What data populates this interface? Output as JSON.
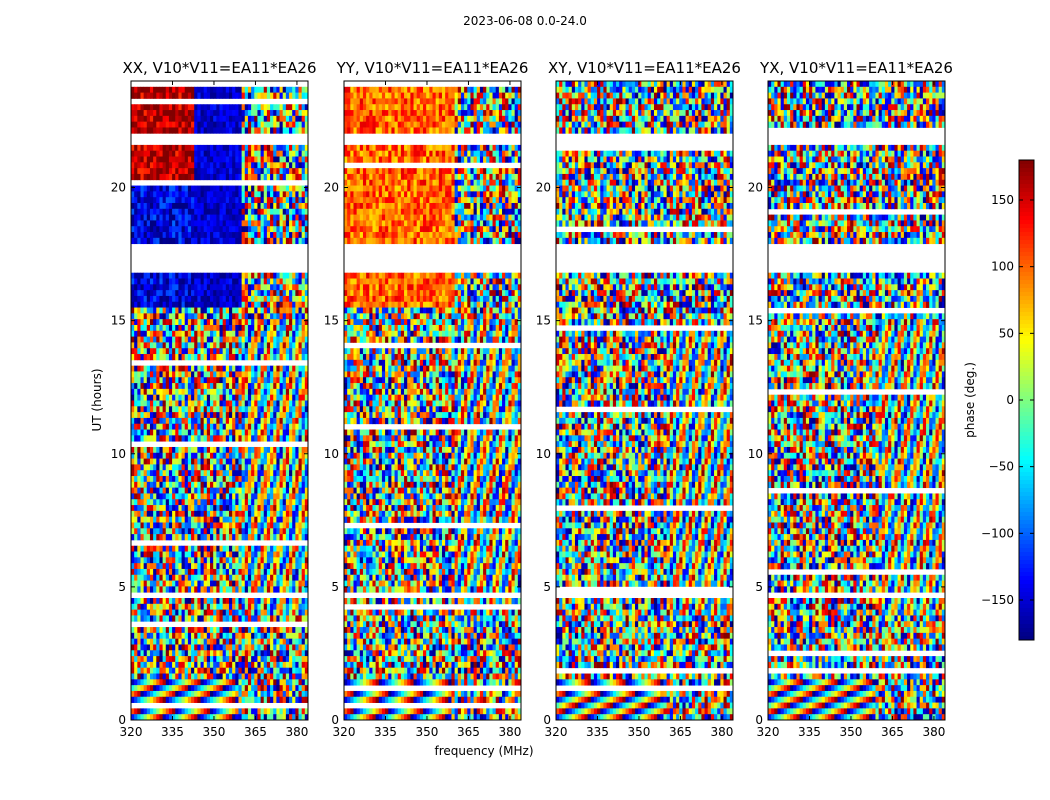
{
  "figure": {
    "suptitle": "2023-06-08 0.0-24.0"
  },
  "chart_data": {
    "type": "heatmap",
    "suptitle": "2023-06-08 0.0-24.0",
    "xlabel": "frequency (MHz)",
    "ylabel": "UT (hours)",
    "x_ticks": [
      320,
      335,
      350,
      365,
      380
    ],
    "y_ticks": [
      0,
      5,
      10,
      15,
      20
    ],
    "xlim": [
      320,
      384
    ],
    "ylim": [
      0,
      24
    ],
    "panels": [
      {
        "title": "XX, V10*V11=EA11*EA26",
        "pol": "XX"
      },
      {
        "title": "YY, V10*V11=EA11*EA26",
        "pol": "YY"
      },
      {
        "title": "XY, V10*V11=EA11*EA26",
        "pol": "XY"
      },
      {
        "title": "YX, V10*V11=EA11*EA26",
        "pol": "YX"
      }
    ],
    "colorbar": {
      "label": "phase (deg.)",
      "ticks": [
        150,
        100,
        50,
        0,
        -50,
        -100,
        -150
      ],
      "range": [
        -180,
        180
      ],
      "colormap": "jet"
    },
    "data_gaps_hours": [
      [
        16.7,
        17.9
      ],
      [
        21.5,
        22.0
      ],
      [
        4.5,
        4.8
      ]
    ]
  },
  "colors": {
    "axis": "#000000",
    "background": "#ffffff"
  }
}
